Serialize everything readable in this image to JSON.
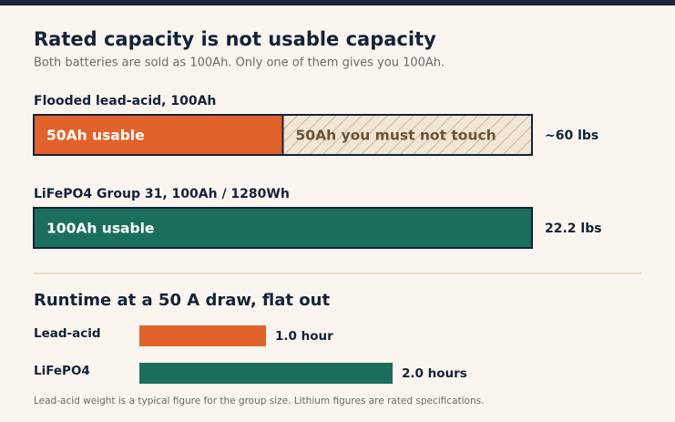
{
  "title": "Rated capacity is not usable capacity",
  "subtitle": "Both batteries are sold as 100Ah. Only one of them gives you 100Ah.",
  "batteries": [
    {
      "label": "Flooded lead-acid, 100Ah",
      "segments": [
        {
          "label": "50Ah usable",
          "value": 50,
          "color": "#e2622b"
        },
        {
          "label": "50Ah you must not touch",
          "value": 50,
          "color": "#f1e6d4",
          "hatched": true
        }
      ],
      "weight": "~60 lbs"
    },
    {
      "label": "LiFePO4 Group 31, 100Ah / 1280Wh",
      "segments": [
        {
          "label": "100Ah usable",
          "value": 100,
          "color": "#1c6e5c"
        }
      ],
      "weight": "22.2 lbs"
    }
  ],
  "runtime": {
    "title": "Runtime at a 50 A draw, flat out",
    "rows": [
      {
        "label": "Lead-acid",
        "value": 1.0,
        "value_label": "1.0 hour",
        "color": "#e2622b"
      },
      {
        "label": "LiFePO4",
        "value": 2.0,
        "value_label": "2.0 hours",
        "color": "#1c6e5c"
      }
    ]
  },
  "footnote": "Lead-acid weight is a typical figure for the group size. Lithium figures are rated specifications."
}
